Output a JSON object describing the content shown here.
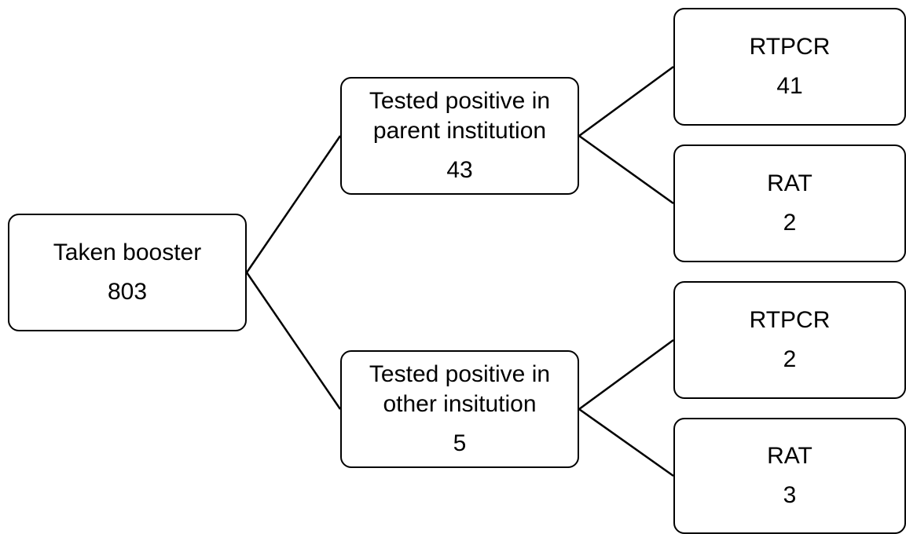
{
  "diagram": {
    "root": {
      "label": "Taken booster",
      "value": "803"
    },
    "branches": [
      {
        "label": "Tested positive in parent institution",
        "value": "43",
        "children": [
          {
            "label": "RTPCR",
            "value": "41"
          },
          {
            "label": "RAT",
            "value": "2"
          }
        ]
      },
      {
        "label": "Tested positive in other insitution",
        "value": "5",
        "children": [
          {
            "label": "RTPCR",
            "value": "2"
          },
          {
            "label": "RAT",
            "value": "3"
          }
        ]
      }
    ]
  }
}
